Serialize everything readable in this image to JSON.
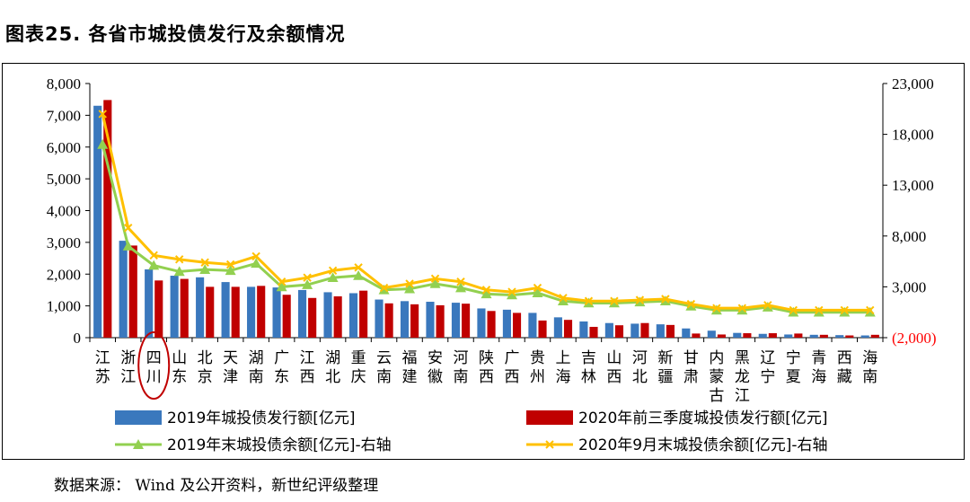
{
  "figure_title": "图表25. 各省市城投债发行及余额情况",
  "source": "数据来源：   Wind 及公开资料，新世纪评级整理",
  "colors": {
    "issue2019": "#3a78bd",
    "issue2020": "#c00000",
    "balance2019": "#92d050",
    "balance2020": "#ffc000",
    "right_axis_negative": "#ff0000",
    "highlight": "#c00000"
  },
  "chart_data": {
    "type": "bar+line",
    "highlight_category": "四川",
    "categories": [
      "江苏",
      "浙江",
      "四川",
      "山东",
      "北京",
      "天津",
      "湖南",
      "广东",
      "江西",
      "湖北",
      "重庆",
      "云南",
      "福建",
      "安徽",
      "河南",
      "陕西",
      "广西",
      "贵州",
      "上海",
      "吉林",
      "山西",
      "河北",
      "新疆",
      "甘肃",
      "内蒙古",
      "黑龙江",
      "辽宁",
      "宁夏",
      "青海",
      "西藏",
      "海南"
    ],
    "y_left": {
      "min": 0,
      "max": 8000,
      "step": 1000,
      "tick_labels": [
        "0",
        "1,000",
        "2,000",
        "3,000",
        "4,000",
        "5,000",
        "6,000",
        "7,000",
        "8,000"
      ]
    },
    "y_right": {
      "min": -2000,
      "max": 23000,
      "step": 5000,
      "tick_labels": [
        "(2,000)",
        "3,000",
        "8,000",
        "13,000",
        "18,000",
        "23,000"
      ]
    },
    "series": [
      {
        "name": "2019年城投债发行额[亿元]",
        "type": "bar",
        "axis": "left",
        "values": [
          7300,
          3050,
          2150,
          1950,
          1900,
          1750,
          1600,
          1580,
          1500,
          1430,
          1400,
          1200,
          1150,
          1130,
          1100,
          920,
          880,
          780,
          640,
          510,
          460,
          440,
          420,
          290,
          220,
          150,
          120,
          100,
          90,
          80,
          70
        ]
      },
      {
        "name": "2020年前三季度城投债发行额[亿元]",
        "type": "bar",
        "axis": "left",
        "values": [
          7480,
          2900,
          1800,
          1850,
          1600,
          1600,
          1630,
          1350,
          1250,
          1300,
          1480,
          1080,
          1050,
          1020,
          1070,
          840,
          780,
          540,
          560,
          340,
          390,
          460,
          400,
          130,
          100,
          140,
          140,
          130,
          90,
          70,
          90
        ]
      },
      {
        "name": "2019年末城投债余额[亿元]-右轴",
        "type": "line",
        "axis": "right",
        "values": [
          17000,
          7000,
          5100,
          4500,
          4700,
          4600,
          5300,
          3000,
          3200,
          3900,
          4100,
          2700,
          2800,
          3300,
          2900,
          2300,
          2200,
          2400,
          1600,
          1400,
          1400,
          1500,
          1600,
          1100,
          700,
          700,
          1000,
          500,
          500,
          500,
          500
        ]
      },
      {
        "name": "2020年9月末城投债余额[亿元]-右轴",
        "type": "line",
        "axis": "right",
        "values": [
          20000,
          8800,
          6100,
          5700,
          5400,
          5200,
          6000,
          3500,
          3900,
          4600,
          4900,
          2900,
          3300,
          3800,
          3500,
          2700,
          2500,
          2900,
          1900,
          1600,
          1600,
          1700,
          1800,
          1300,
          900,
          900,
          1200,
          700,
          700,
          700,
          700
        ]
      }
    ]
  }
}
